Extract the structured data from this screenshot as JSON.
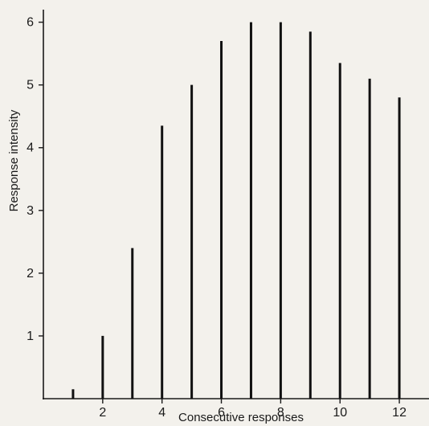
{
  "chart_data": {
    "type": "bar",
    "xlabel": "Consecutive responses",
    "ylabel": "Response intensity",
    "x": [
      1,
      2,
      3,
      4,
      5,
      6,
      7,
      8,
      9,
      10,
      11,
      12
    ],
    "values": [
      0.15,
      1.0,
      2.4,
      4.35,
      5.0,
      5.7,
      6.0,
      6.0,
      5.85,
      5.35,
      5.1,
      4.8
    ],
    "xlim": [
      0,
      13
    ],
    "ylim": [
      0,
      6.2
    ],
    "xticks": [
      2,
      4,
      6,
      8,
      10,
      12
    ],
    "yticks": [
      1,
      2,
      3,
      4,
      5,
      6
    ],
    "grid": false,
    "bar_color": "#111111",
    "background": "#f3f1ec"
  }
}
